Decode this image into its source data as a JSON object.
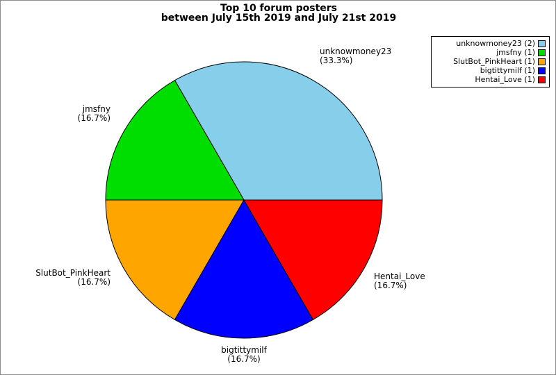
{
  "title": {
    "line1": "Top 10 forum posters",
    "line2": "between July 15th 2019 and July 21st 2019"
  },
  "chart_data": {
    "type": "pie",
    "title": "Top 10 forum posters between July 15th 2019 and July 21st 2019",
    "categories": [
      "unknowmoney23",
      "jmsfny",
      "SlutBot_PinkHeart",
      "bigtittymilf",
      "Hentai_Love"
    ],
    "values": [
      2,
      1,
      1,
      1,
      1
    ],
    "percents": [
      33.3,
      16.7,
      16.7,
      16.7,
      16.7
    ],
    "percent_labels": [
      "(33.3%)",
      "(16.7%)",
      "(16.7%)",
      "(16.7%)",
      "(16.7%)"
    ],
    "colors": [
      "#87ceeb",
      "#00dd00",
      "#ffa500",
      "#0000ff",
      "#ff0000"
    ],
    "edge_color": "#000000",
    "start_angle_deg": 0,
    "direction": "counterclockwise",
    "legend_position": "upper right",
    "grid": false
  },
  "legend": {
    "items": [
      {
        "label": "unknowmoney23 (2)",
        "color": "#87ceeb"
      },
      {
        "label": "jmsfny (1)",
        "color": "#00dd00"
      },
      {
        "label": "SlutBot_PinkHeart (1)",
        "color": "#ffa500"
      },
      {
        "label": "bigtittymilf (1)",
        "color": "#0000ff"
      },
      {
        "label": "Hentai_Love (1)",
        "color": "#ff0000"
      }
    ]
  }
}
